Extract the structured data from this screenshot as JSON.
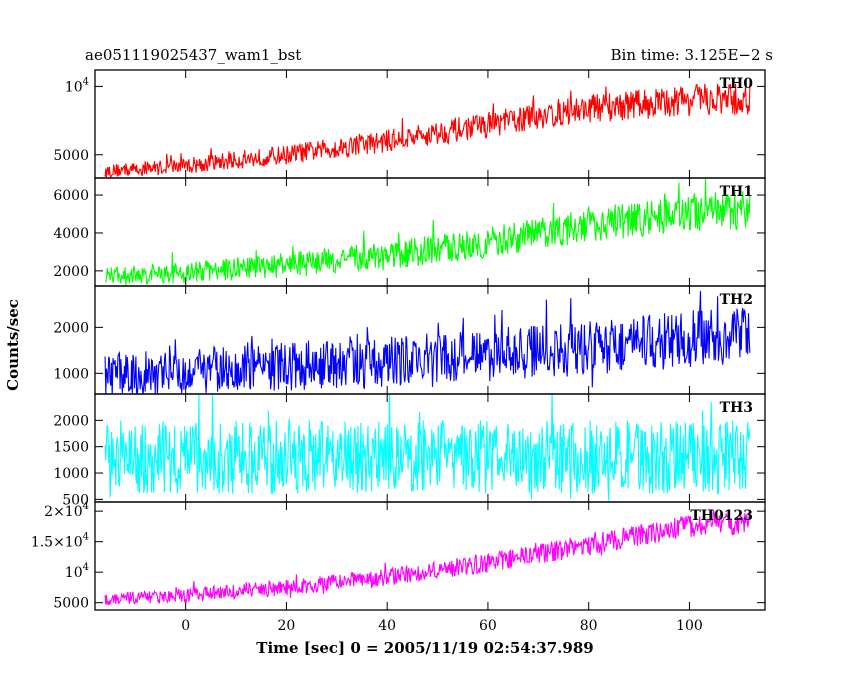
{
  "header": {
    "left_title": "ae051119025437_wam1_bst",
    "right_title": "Bin time: 3.125E−2 s"
  },
  "chart_data": {
    "type": "line",
    "xlabel": "Time [sec] 0 = 2005/11/19 02:54:37.989",
    "ylabel": "Counts/sec",
    "xlim": [
      -18,
      115
    ],
    "x_start": -16,
    "x_end": 112,
    "x_ticks": [
      0,
      20,
      40,
      60,
      80,
      100
    ],
    "x_tick_labels": [
      "0",
      "20",
      "40",
      "60",
      "80",
      "100"
    ],
    "panels": [
      {
        "name": "TH0",
        "color": "#ff0000",
        "ylim": [
          3300,
          11200
        ],
        "y_ticks": [
          5000,
          10000
        ],
        "y_tick_labels": [
          [
            "5000",
            ""
          ],
          [
            "10",
            "4"
          ]
        ],
        "trend": {
          "x": [
            -16,
            0,
            20,
            40,
            60,
            80,
            100,
            112
          ],
          "y": [
            3800,
            4200,
            5000,
            6000,
            7200,
            8400,
            9000,
            9000
          ]
        },
        "spread": [
          1000,
          2500
        ]
      },
      {
        "name": "TH1",
        "color": "#00ff00",
        "ylim": [
          1200,
          6900
        ],
        "y_ticks": [
          2000,
          4000,
          6000
        ],
        "y_tick_labels": [
          [
            "2000",
            ""
          ],
          [
            "4000",
            ""
          ],
          [
            "6000",
            ""
          ]
        ],
        "trend": {
          "x": [
            -16,
            0,
            20,
            40,
            60,
            80,
            100,
            112
          ],
          "y": [
            1700,
            1900,
            2300,
            2800,
            3500,
            4400,
            5100,
            5200
          ]
        },
        "spread": [
          1000,
          2100
        ]
      },
      {
        "name": "TH2",
        "color": "#0000ff",
        "ylim": [
          550,
          2900
        ],
        "y_ticks": [
          1000,
          2000
        ],
        "y_tick_labels": [
          [
            "1000",
            ""
          ],
          [
            "2000",
            ""
          ]
        ],
        "trend": {
          "x": [
            -16,
            0,
            20,
            40,
            60,
            80,
            100,
            112
          ],
          "y": [
            950,
            1050,
            1150,
            1250,
            1400,
            1550,
            1750,
            1800
          ]
        },
        "spread": [
          950,
          1300
        ]
      },
      {
        "name": "TH3",
        "color": "#00ffff",
        "ylim": [
          450,
          2500
        ],
        "y_ticks": [
          500,
          1000,
          1500,
          2000
        ],
        "y_tick_labels": [
          [
            "500",
            ""
          ],
          [
            "1000",
            ""
          ],
          [
            "1500",
            ""
          ],
          [
            "2000",
            ""
          ]
        ],
        "trend": {
          "x": [
            -16,
            112
          ],
          "y": [
            1300,
            1300
          ]
        },
        "spread": [
          1400,
          1400
        ]
      },
      {
        "name": "TH0123",
        "color": "#ff00ff",
        "ylim": [
          3800,
          21500
        ],
        "y_ticks": [
          5000,
          10000,
          15000,
          20000
        ],
        "y_tick_labels": [
          [
            "5000",
            ""
          ],
          [
            "10",
            "4"
          ],
          [
            "1.5×10",
            "4"
          ],
          [
            "2×10",
            "4"
          ]
        ],
        "trend": {
          "x": [
            -16,
            0,
            20,
            40,
            60,
            80,
            100,
            112
          ],
          "y": [
            5500,
            6200,
            7500,
            9200,
            11500,
            14500,
            17500,
            18200
          ]
        },
        "spread": [
          2000,
          4000
        ]
      }
    ]
  }
}
